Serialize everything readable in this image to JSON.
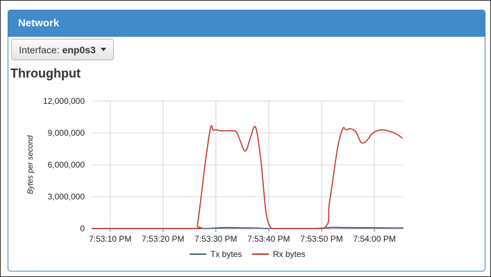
{
  "panel": {
    "title": "Network"
  },
  "interface": {
    "label": "Interface:",
    "value": "enp0s3"
  },
  "chart_title": "Throughput",
  "chart_data": {
    "type": "line",
    "title": "Throughput",
    "xlabel": "",
    "ylabel": "Bytes per second",
    "ylim": [
      0,
      12000000
    ],
    "yticks": [
      "0",
      "3,000,000",
      "6,000,000",
      "9,000,000",
      "12,000,000"
    ],
    "xticks": [
      "7:53:10 PM",
      "7:53:20 PM",
      "7:53:30 PM",
      "7:53:40 PM",
      "7:53:50 PM",
      "7:54:00 PM"
    ],
    "xticks_seconds": [
      0,
      10,
      20,
      30,
      40,
      50
    ],
    "xlim_seconds": [
      -3.5,
      55.5
    ],
    "grid": true,
    "legend_position": "bottom",
    "series": [
      {
        "name": "Tx bytes",
        "color": "#4a5d8a",
        "x": [
          -3.5,
          17,
          19.5,
          22,
          26,
          28.5,
          30,
          37,
          40,
          42,
          45,
          52,
          55.5
        ],
        "y": [
          0,
          0,
          40000,
          90000,
          60000,
          40000,
          0,
          0,
          30000,
          110000,
          90000,
          60000,
          50000
        ]
      },
      {
        "name": "Rx bytes",
        "color": "#c0392b",
        "x": [
          -3.5,
          15.8,
          16.5,
          18,
          19,
          19.5,
          20,
          21,
          23,
          24,
          25.5,
          26.5,
          27.5,
          28.5,
          29.5,
          30.5,
          31.5,
          40.3,
          41.5,
          43,
          44,
          44.6,
          45.5,
          46.5,
          47.5,
          48.5,
          49.5,
          50.5,
          51.5,
          52.5,
          53.5,
          54.5,
          55.3
        ],
        "y": [
          0,
          0,
          300000,
          6200000,
          9500000,
          9250000,
          9300000,
          9200000,
          9200000,
          9000000,
          7300000,
          8500000,
          9550000,
          6500000,
          1500000,
          0,
          0,
          0,
          2500000,
          7500000,
          9400000,
          9300000,
          9400000,
          9100000,
          8100000,
          8250000,
          8900000,
          9200000,
          9300000,
          9200000,
          9050000,
          8800000,
          8500000
        ]
      }
    ]
  }
}
